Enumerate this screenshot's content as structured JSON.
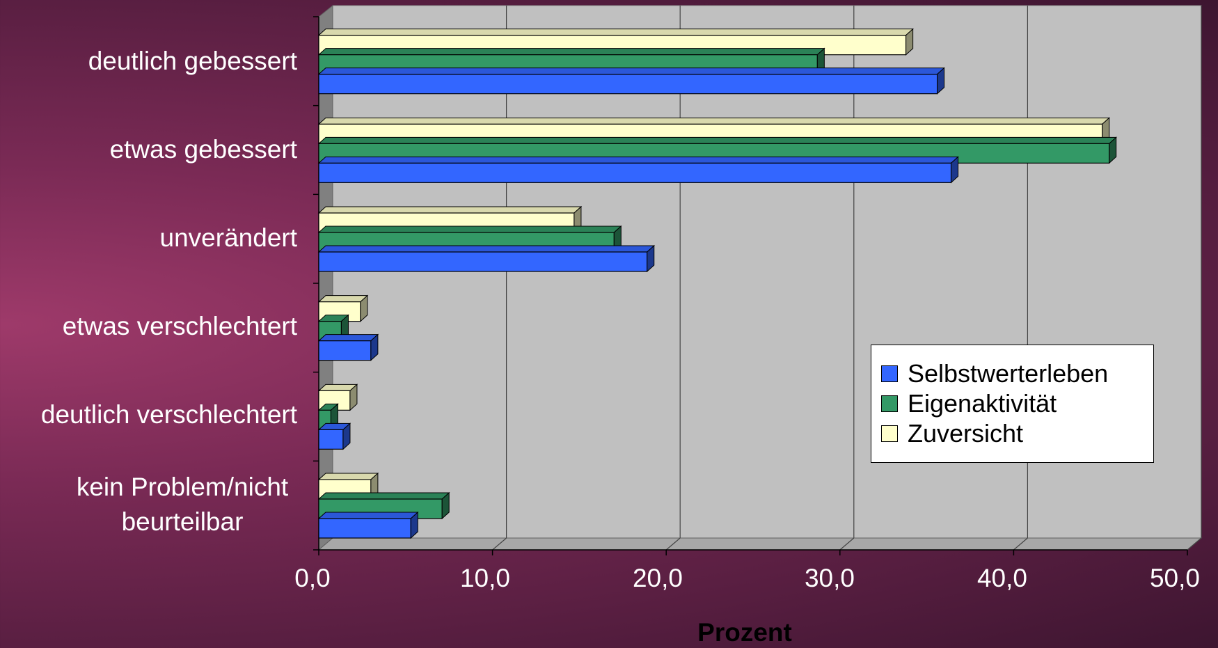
{
  "chart_data": {
    "type": "bar",
    "orientation": "horizontal",
    "categories": [
      "deutlich gebessert",
      "etwas gebessert",
      "unverändert",
      "etwas verschlechtert",
      "deutlich verschlechtert",
      "kein Problem/nicht beurteilbar"
    ],
    "series": [
      {
        "name": "Selbstwerterleben",
        "color": "#3366ff",
        "values": [
          35.6,
          36.4,
          18.9,
          3.0,
          1.4,
          5.3
        ]
      },
      {
        "name": "Eigenaktivität",
        "color": "#339966",
        "values": [
          28.7,
          45.5,
          17.0,
          1.3,
          0.7,
          7.1
        ]
      },
      {
        "name": "Zuversicht",
        "color": "#ffffcc",
        "values": [
          33.8,
          45.1,
          14.7,
          2.4,
          1.8,
          3.0
        ]
      }
    ],
    "xlabel": "Prozent",
    "ylabel": "",
    "xlim": [
      0,
      50
    ],
    "ticks": [
      "0,0",
      "10,0",
      "20,0",
      "30,0",
      "40,0",
      "50,0"
    ],
    "grid": true,
    "legend_position": "right"
  }
}
